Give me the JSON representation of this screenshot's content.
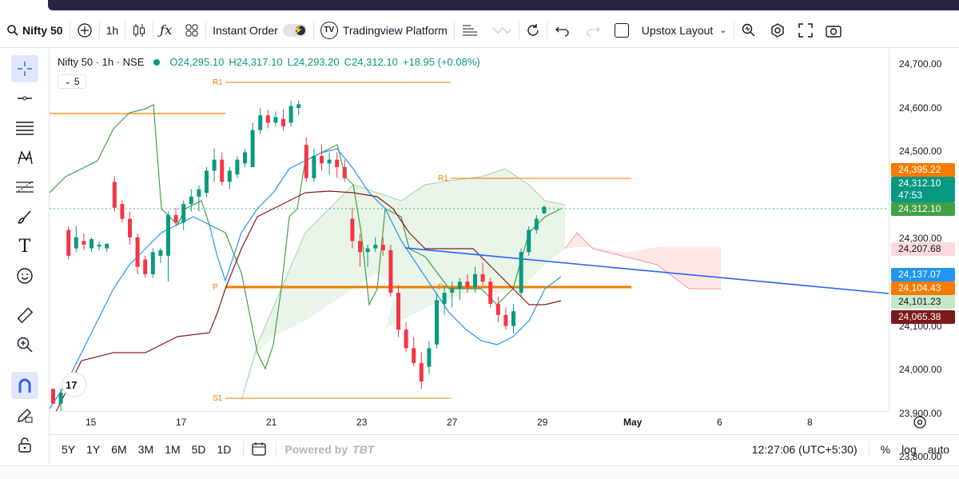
{
  "toolbar": {
    "symbol": "Nifty 50",
    "interval": "1h",
    "instant_order": "Instant Order",
    "platform": "Tradingview Platform",
    "layout": "Upstox Layout"
  },
  "legend": {
    "title": "Nifty 50 · 1h · NSE",
    "open": "O24,295.10",
    "high": "H24,317.10",
    "low": "L24,293.20",
    "close": "C24,312.10",
    "change": "+18.95 (+0.08%)",
    "indicator_count": "5"
  },
  "chart_labels": {
    "r1_left": "R1",
    "r1_right": "R1",
    "p_left": "P",
    "p_right": "P",
    "s1": "S1"
  },
  "price_scale": {
    "ticks": [
      "24,700.00",
      "24,600.00",
      "24,500.00",
      "24,400.00",
      "24,300.00",
      "24,200.00",
      "24,100.00",
      "24,000.00",
      "23,900.00",
      "23,800.00"
    ],
    "pills": {
      "p1": "24,395.22",
      "p2_price": "24,312.10",
      "p2_timer": "47:53",
      "p3": "24,312.10",
      "p4": "24,207.68",
      "p5": "24,137.07",
      "p6": "24,104.43",
      "p7": "24,101.23",
      "p8": "24,065.38"
    },
    "colors": {
      "orange": "#f57c00",
      "teal": "#089981",
      "green": "#43a047",
      "pink_bg": "#fcd9dc",
      "blue": "#2196f3",
      "light_green_bg": "#c8e6c9",
      "maroon": "#7b1a1a"
    }
  },
  "time_axis": {
    "labels": [
      "15",
      "17",
      "21",
      "23",
      "27",
      "29",
      "May",
      "6",
      "8"
    ]
  },
  "bottom_bar": {
    "ranges": [
      "5Y",
      "1Y",
      "6M",
      "3M",
      "1M",
      "5D",
      "1D"
    ],
    "powered": "Powered by",
    "brand": "TBT",
    "time": "12:27:06 (UTC+5:30)",
    "percent": "%",
    "log": "log",
    "auto": "auto"
  },
  "chart_data": {
    "type": "candlestick",
    "title": "Nifty 50 · 1h · NSE",
    "ylim": [
      23760,
      24740
    ],
    "x_labels": [
      "15",
      "17",
      "21",
      "23",
      "27",
      "29",
      "May",
      "6",
      "8"
    ],
    "candles": [
      [
        0,
        23820,
        23820,
        23780,
        23780
      ],
      [
        1,
        23780,
        23820,
        23760,
        23810
      ],
      [
        2,
        24250,
        24260,
        24170,
        24180
      ],
      [
        3,
        24200,
        24260,
        24190,
        24230
      ],
      [
        4,
        24220,
        24240,
        24195,
        24210
      ],
      [
        5,
        24200,
        24230,
        24190,
        24225
      ],
      [
        6,
        24205,
        24220,
        24195,
        24210
      ],
      [
        7,
        24200,
        24215,
        24190,
        24212
      ],
      [
        8,
        24380,
        24395,
        24300,
        24310
      ],
      [
        9,
        24320,
        24330,
        24270,
        24280
      ],
      [
        10,
        24280,
        24300,
        24210,
        24230
      ],
      [
        11,
        24230,
        24240,
        24130,
        24150
      ],
      [
        12,
        24170,
        24180,
        24120,
        24130
      ],
      [
        13,
        24130,
        24200,
        24120,
        24190
      ],
      [
        14,
        24180,
        24200,
        24160,
        24195
      ],
      [
        15,
        24180,
        24300,
        24110,
        24290
      ],
      [
        16,
        24290,
        24310,
        24260,
        24270
      ],
      [
        17,
        24270,
        24330,
        24250,
        24320
      ],
      [
        18,
        24320,
        24360,
        24300,
        24340
      ],
      [
        19,
        24340,
        24370,
        24300,
        24360
      ],
      [
        20,
        24350,
        24420,
        24340,
        24410
      ],
      [
        21,
        24410,
        24470,
        24380,
        24440
      ],
      [
        22,
        24440,
        24460,
        24370,
        24380
      ],
      [
        23,
        24380,
        24420,
        24360,
        24410
      ],
      [
        24,
        24400,
        24450,
        24390,
        24440
      ],
      [
        25,
        24430,
        24470,
        24420,
        24460
      ],
      [
        26,
        24420,
        24540,
        24420,
        24520
      ],
      [
        27,
        24520,
        24580,
        24510,
        24560
      ],
      [
        28,
        24560,
        24575,
        24525,
        24540
      ],
      [
        29,
        24540,
        24570,
        24530,
        24555
      ],
      [
        30,
        24550,
        24575,
        24520,
        24530
      ],
      [
        31,
        24540,
        24600,
        24530,
        24585
      ],
      [
        32,
        24580,
        24600,
        24560,
        24590
      ],
      [
        33,
        24480,
        24500,
        24380,
        24390
      ],
      [
        34,
        24390,
        24470,
        24380,
        24450
      ],
      [
        35,
        24450,
        24480,
        24410,
        24430
      ],
      [
        36,
        24430,
        24460,
        24400,
        24440
      ],
      [
        37,
        24440,
        24460,
        24390,
        24420
      ],
      [
        38,
        24420,
        24440,
        24380,
        24390
      ],
      [
        39,
        24280,
        24310,
        24200,
        24220
      ],
      [
        40,
        24220,
        24240,
        24150,
        24190
      ],
      [
        41,
        24190,
        24210,
        24150,
        24200
      ],
      [
        42,
        24200,
        24230,
        24190,
        24210
      ],
      [
        43,
        24210,
        24230,
        24180,
        24195
      ],
      [
        44,
        24195,
        24210,
        24070,
        24080
      ],
      [
        45,
        24080,
        24100,
        23960,
        23980
      ],
      [
        46,
        23980,
        24000,
        23920,
        23930
      ],
      [
        47,
        23930,
        23960,
        23880,
        23890
      ],
      [
        48,
        23890,
        23920,
        23820,
        23840
      ],
      [
        49,
        23880,
        23950,
        23860,
        23930
      ],
      [
        50,
        23940,
        24080,
        23930,
        24060
      ],
      [
        51,
        24050,
        24100,
        24020,
        24080
      ],
      [
        52,
        24080,
        24110,
        24040,
        24090
      ],
      [
        53,
        24090,
        24120,
        24060,
        24110
      ],
      [
        54,
        24110,
        24130,
        24080,
        24095
      ],
      [
        55,
        24095,
        24150,
        24080,
        24130
      ],
      [
        56,
        24130,
        24160,
        24100,
        24110
      ],
      [
        57,
        24110,
        24120,
        24040,
        24050
      ],
      [
        58,
        24050,
        24070,
        24000,
        24020
      ],
      [
        59,
        24020,
        24040,
        23980,
        23990
      ],
      [
        60,
        23990,
        24050,
        23970,
        24030
      ],
      [
        61,
        24080,
        24200,
        24070,
        24190
      ],
      [
        62,
        24190,
        24260,
        24180,
        24250
      ],
      [
        63,
        24250,
        24290,
        24240,
        24280
      ],
      [
        64,
        24295,
        24317,
        24293,
        24312
      ]
    ]
  }
}
